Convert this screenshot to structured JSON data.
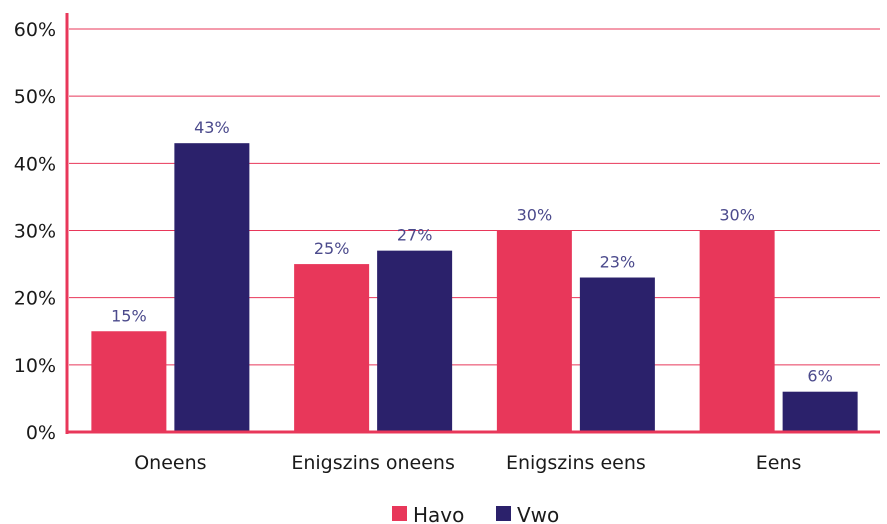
{
  "chart_data": {
    "type": "bar",
    "categories": [
      "Oneens",
      "Enigszins oneens",
      "Enigszins eens",
      "Eens"
    ],
    "series": [
      {
        "name": "Havo",
        "values": [
          15,
          25,
          30,
          30
        ],
        "color": "#e8375a"
      },
      {
        "name": "Vwo",
        "values": [
          43,
          27,
          23,
          6
        ],
        "color": "#2b216b"
      }
    ],
    "ylim": [
      0,
      60
    ],
    "yticks": [
      0,
      10,
      20,
      30,
      40,
      50,
      60
    ],
    "ytick_labels": [
      "0%",
      "10%",
      "20%",
      "30%",
      "40%",
      "50%",
      "60%"
    ],
    "value_suffix": "%",
    "gridlines": true,
    "gridline_color": "#e8375a",
    "axis_color": "#e8375a",
    "legend_position": "bottom-center"
  }
}
